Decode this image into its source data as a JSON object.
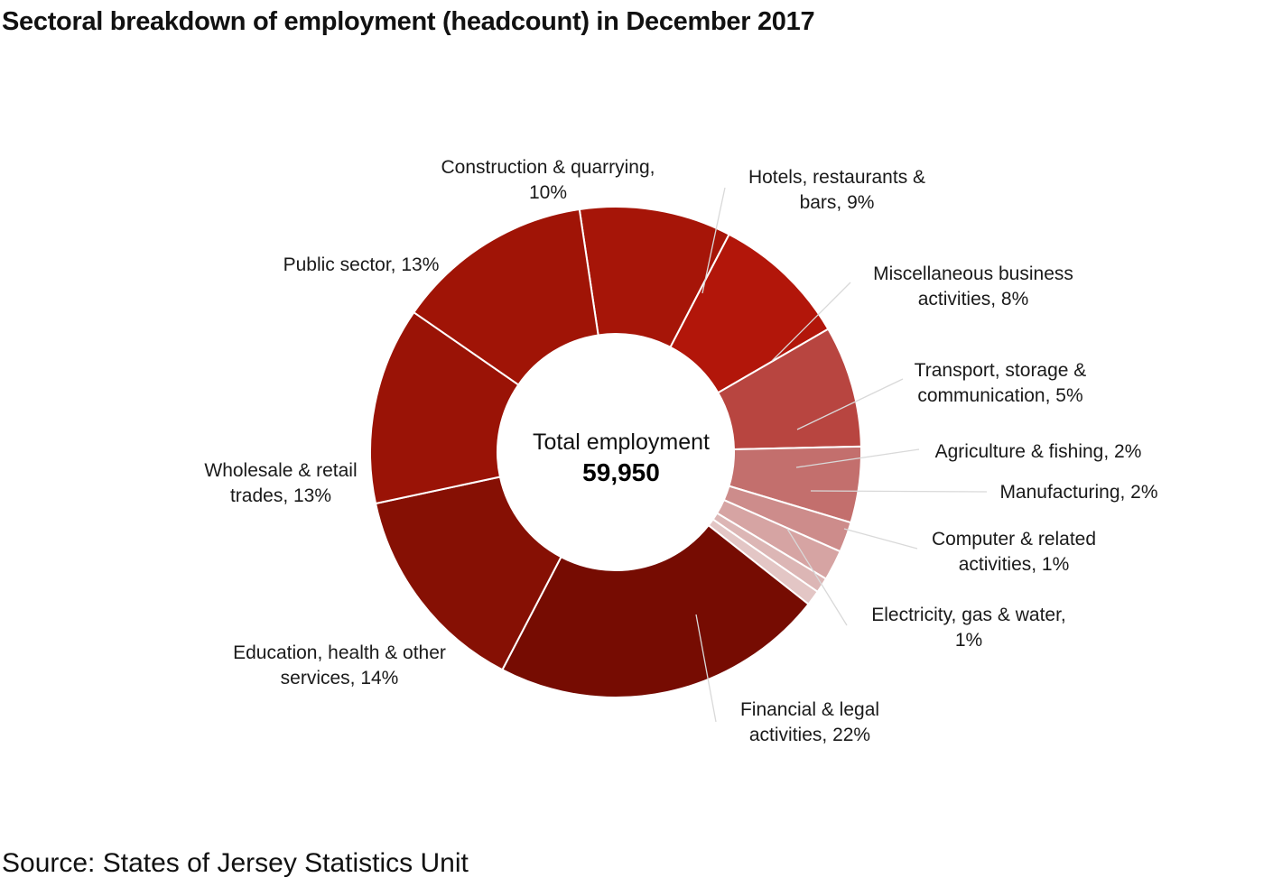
{
  "title": "Sectoral breakdown of employment (headcount) in December 2017",
  "source": "Source: States of Jersey Statistics Unit",
  "center": {
    "label": "Total employment",
    "value": "59,950"
  },
  "chart_data": {
    "type": "pie",
    "donut": true,
    "title": "Sectoral breakdown of employment (headcount) in December 2017",
    "total": 59950,
    "series": [
      {
        "name": "Construction & quarrying",
        "value": 10,
        "label_lines": [
          "Construction & quarrying,",
          "10%"
        ],
        "color": "#a61508"
      },
      {
        "name": "Hotels, restaurants & bars",
        "value": 9,
        "label_lines": [
          "Hotels, restaurants &",
          "bars, 9%"
        ],
        "color": "#b2160a"
      },
      {
        "name": "Miscellaneous business activities",
        "value": 8,
        "label_lines": [
          "Miscellaneous business",
          "activities, 8%"
        ],
        "color": "#b84540"
      },
      {
        "name": "Transport, storage & communication",
        "value": 5,
        "label_lines": [
          "Transport, storage &",
          "communication, 5%"
        ],
        "color": "#c36f6d"
      },
      {
        "name": "Agriculture & fishing",
        "value": 2,
        "label_lines": [
          "Agriculture & fishing, 2%"
        ],
        "color": "#cd8c8b"
      },
      {
        "name": "Manufacturing",
        "value": 2,
        "label_lines": [
          "Manufacturing, 2%"
        ],
        "color": "#d6a4a3"
      },
      {
        "name": "Computer & related activities",
        "value": 1,
        "label_lines": [
          "Computer & related",
          "activities, 1%"
        ],
        "color": "#dcb6b5"
      },
      {
        "name": "Electricity, gas & water",
        "value": 1,
        "label_lines": [
          "Electricity, gas & water,",
          "1%"
        ],
        "color": "#e3c6c5"
      },
      {
        "name": "Financial & legal activities",
        "value": 22,
        "label_lines": [
          "Financial & legal",
          "activities, 22%"
        ],
        "color": "#760c02"
      },
      {
        "name": "Education, health & other services",
        "value": 14,
        "label_lines": [
          "Education, health & other",
          "services, 14%"
        ],
        "color": "#861004"
      },
      {
        "name": "Wholesale & retail trades",
        "value": 13,
        "label_lines": [
          "Wholesale & retail",
          "trades, 13%"
        ],
        "color": "#9a1306"
      },
      {
        "name": "Public sector",
        "value": 13,
        "label_lines": [
          "Public sector, 13%"
        ],
        "color": "#a01406"
      }
    ]
  }
}
